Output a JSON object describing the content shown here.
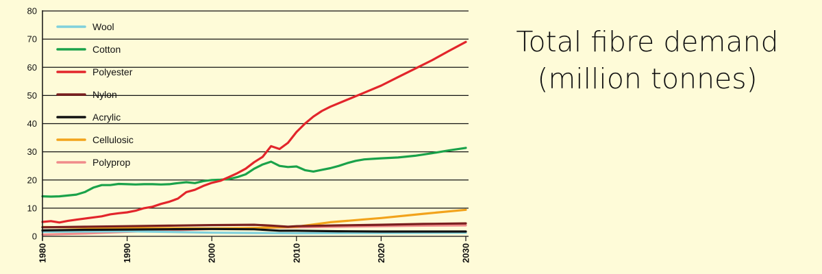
{
  "title": {
    "line1": "Total fibre demand",
    "line2": "(million tonnes)"
  },
  "chart_data": {
    "type": "line",
    "xlim": [
      1980,
      2030
    ],
    "ylim": [
      0,
      80
    ],
    "x_ticks": [
      "1980",
      "1990",
      "2000",
      "2010",
      "2020",
      "2030"
    ],
    "y_ticks": [
      "0",
      "10",
      "20",
      "30",
      "40",
      "50",
      "60",
      "70",
      "80"
    ],
    "grid": "horizontal",
    "legend_position": "top-left",
    "series": [
      {
        "name": "Wool",
        "color": "#7fd0dc",
        "points": [
          [
            1980,
            1.6
          ],
          [
            1990,
            1.8
          ],
          [
            2000,
            1.3
          ],
          [
            2005,
            1.2
          ],
          [
            2010,
            1.1
          ],
          [
            2020,
            1.2
          ],
          [
            2030,
            1.3
          ]
        ]
      },
      {
        "name": "Cotton",
        "color": "#1aa24a",
        "points": [
          [
            1980,
            14.2
          ],
          [
            1981,
            14.1
          ],
          [
            1982,
            14.2
          ],
          [
            1983,
            14.5
          ],
          [
            1984,
            14.8
          ],
          [
            1985,
            15.7
          ],
          [
            1986,
            17.3
          ],
          [
            1987,
            18.2
          ],
          [
            1988,
            18.2
          ],
          [
            1989,
            18.6
          ],
          [
            1990,
            18.5
          ],
          [
            1991,
            18.4
          ],
          [
            1992,
            18.5
          ],
          [
            1993,
            18.5
          ],
          [
            1994,
            18.4
          ],
          [
            1995,
            18.5
          ],
          [
            1996,
            18.9
          ],
          [
            1997,
            19.2
          ],
          [
            1998,
            18.9
          ],
          [
            1999,
            19.6
          ],
          [
            2000,
            20
          ],
          [
            2001,
            20.1
          ],
          [
            2002,
            20.3
          ],
          [
            2003,
            21
          ],
          [
            2004,
            22
          ],
          [
            2005,
            24
          ],
          [
            2006,
            25.5
          ],
          [
            2007,
            26.5
          ],
          [
            2008,
            25
          ],
          [
            2009,
            24.6
          ],
          [
            2010,
            24.8
          ],
          [
            2011,
            23.5
          ],
          [
            2012,
            23
          ],
          [
            2013,
            23.6
          ],
          [
            2014,
            24.2
          ],
          [
            2015,
            25
          ],
          [
            2016,
            26
          ],
          [
            2017,
            26.8
          ],
          [
            2018,
            27.3
          ],
          [
            2019,
            27.5
          ],
          [
            2020,
            27.7
          ],
          [
            2022,
            28
          ],
          [
            2024,
            28.6
          ],
          [
            2026,
            29.5
          ],
          [
            2028,
            30.5
          ],
          [
            2030,
            31.4
          ]
        ]
      },
      {
        "name": "Polyester",
        "color": "#e2252b",
        "points": [
          [
            1980,
            5.1
          ],
          [
            1981,
            5.4
          ],
          [
            1982,
            4.9
          ],
          [
            1983,
            5.5
          ],
          [
            1984,
            5.9
          ],
          [
            1985,
            6.3
          ],
          [
            1986,
            6.7
          ],
          [
            1987,
            7.1
          ],
          [
            1988,
            7.8
          ],
          [
            1989,
            8.2
          ],
          [
            1990,
            8.5
          ],
          [
            1991,
            9.1
          ],
          [
            1992,
            10
          ],
          [
            1993,
            10.5
          ],
          [
            1994,
            11.5
          ],
          [
            1995,
            12.3
          ],
          [
            1996,
            13.4
          ],
          [
            1997,
            15.7
          ],
          [
            1998,
            16.5
          ],
          [
            1999,
            17.9
          ],
          [
            2000,
            19
          ],
          [
            2001,
            19.7
          ],
          [
            2002,
            21
          ],
          [
            2003,
            22.4
          ],
          [
            2004,
            24
          ],
          [
            2005,
            26.3
          ],
          [
            2006,
            28.2
          ],
          [
            2007,
            32
          ],
          [
            2008,
            31
          ],
          [
            2009,
            33.2
          ],
          [
            2010,
            37
          ],
          [
            2011,
            40
          ],
          [
            2012,
            42.5
          ],
          [
            2013,
            44.5
          ],
          [
            2014,
            46
          ],
          [
            2016,
            48.5
          ],
          [
            2018,
            51
          ],
          [
            2020,
            53.5
          ],
          [
            2022,
            56.5
          ],
          [
            2024,
            59.5
          ],
          [
            2026,
            62.5
          ],
          [
            2028,
            65.8
          ],
          [
            2030,
            69
          ]
        ]
      },
      {
        "name": "Nylon",
        "color": "#7a1f1f",
        "points": [
          [
            1980,
            3.2
          ],
          [
            1985,
            3.4
          ],
          [
            1990,
            3.6
          ],
          [
            1995,
            3.8
          ],
          [
            2000,
            4
          ],
          [
            2005,
            4.1
          ],
          [
            2007,
            3.8
          ],
          [
            2009,
            3.4
          ],
          [
            2010,
            3.6
          ],
          [
            2015,
            3.9
          ],
          [
            2020,
            4.1
          ],
          [
            2025,
            4.4
          ],
          [
            2030,
            4.6
          ]
        ]
      },
      {
        "name": "Acrylic",
        "color": "#111111",
        "points": [
          [
            1980,
            2.1
          ],
          [
            1985,
            2.3
          ],
          [
            1990,
            2.4
          ],
          [
            1995,
            2.5
          ],
          [
            2000,
            2.6
          ],
          [
            2005,
            2.5
          ],
          [
            2008,
            2.0
          ],
          [
            2010,
            2.0
          ],
          [
            2015,
            1.8
          ],
          [
            2020,
            1.7
          ],
          [
            2025,
            1.7
          ],
          [
            2030,
            1.7
          ]
        ]
      },
      {
        "name": "Cellulosic",
        "color": "#f2a31b",
        "points": [
          [
            1980,
            3.3
          ],
          [
            1985,
            3.1
          ],
          [
            1990,
            2.9
          ],
          [
            1995,
            2.9
          ],
          [
            2000,
            2.8
          ],
          [
            2005,
            3.0
          ],
          [
            2008,
            3.2
          ],
          [
            2010,
            3.4
          ],
          [
            2012,
            4.2
          ],
          [
            2014,
            5.0
          ],
          [
            2016,
            5.5
          ],
          [
            2018,
            6.0
          ],
          [
            2020,
            6.5
          ],
          [
            2025,
            8.0
          ],
          [
            2030,
            9.4
          ]
        ]
      },
      {
        "name": "Polyprop",
        "color": "#f08b8b",
        "points": [
          [
            1980,
            0.6
          ],
          [
            1985,
            1.0
          ],
          [
            1990,
            1.6
          ],
          [
            1995,
            2.1
          ],
          [
            2000,
            2.6
          ],
          [
            2005,
            3.0
          ],
          [
            2010,
            3.2
          ],
          [
            2015,
            3.4
          ],
          [
            2020,
            3.6
          ],
          [
            2025,
            3.8
          ],
          [
            2030,
            3.9
          ]
        ]
      }
    ]
  }
}
